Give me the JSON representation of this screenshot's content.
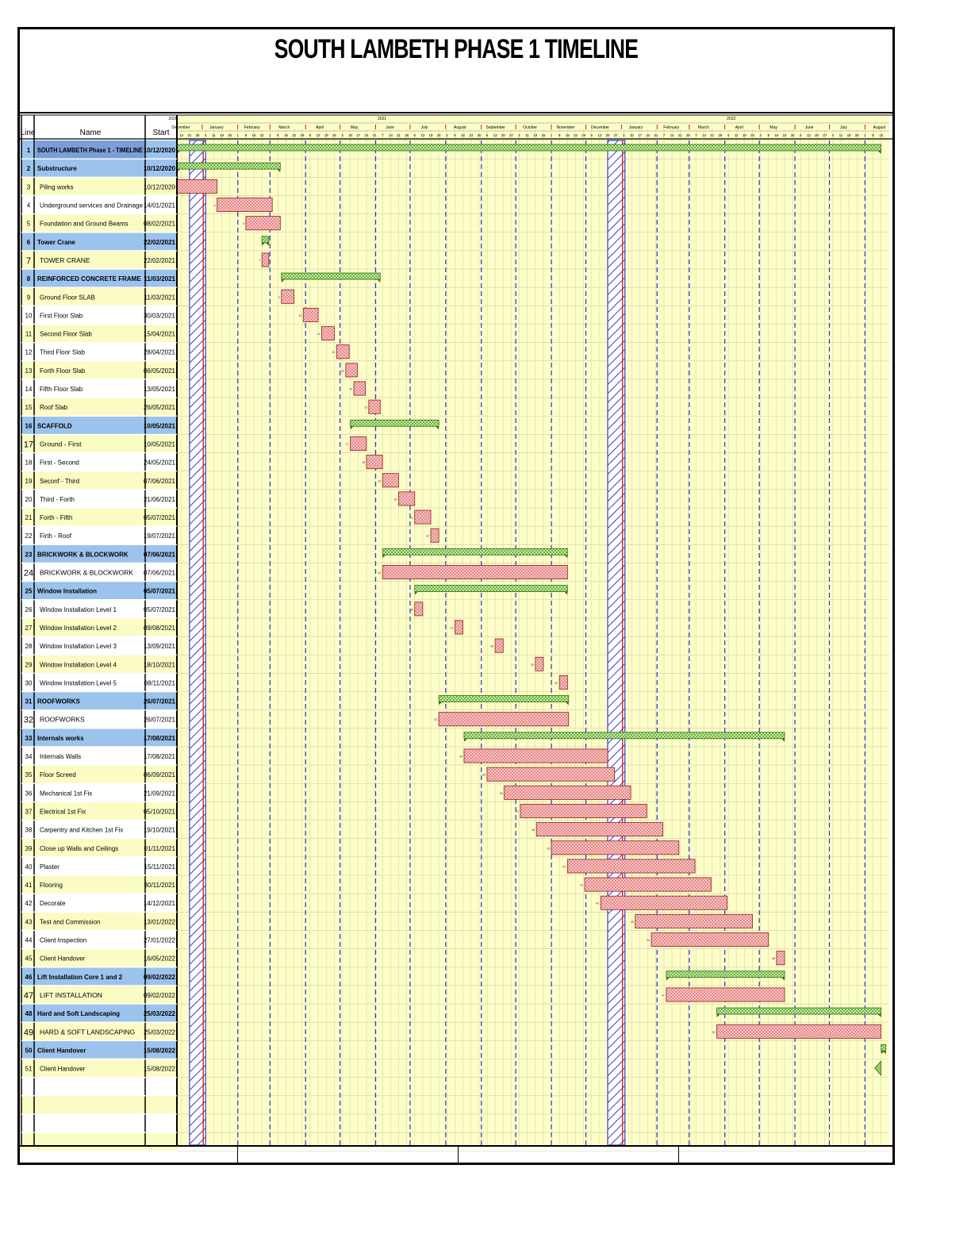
{
  "title": "SOUTH LAMBETH PHASE 1 TIMELINE",
  "colors": {
    "row_yellow": "#fbfbc4",
    "row_white": "#ffffff",
    "summary_blue": "#9cc3ec",
    "chart_bg": "#fdfdc8",
    "task_bar": "#e88a8a",
    "summary_bar": "#7cc04a",
    "week_line": "#6a6ad8",
    "month_line": "#2233cc",
    "holiday_hatch": "#3a3acc"
  },
  "columns": {
    "line": "Line",
    "name": "Name",
    "start": "Start"
  },
  "timeline": {
    "years": [
      {
        "label": "2020",
        "date": "2020-12-01"
      },
      {
        "label": "2021",
        "date": "2021-06-01"
      },
      {
        "label": "2022",
        "date": "2022-04-01"
      }
    ],
    "months": [
      {
        "label": "December",
        "date": "2020-12-01"
      },
      {
        "label": "January",
        "date": "2021-01-01"
      },
      {
        "label": "February",
        "date": "2021-02-01"
      },
      {
        "label": "March",
        "date": "2021-03-01"
      },
      {
        "label": "April",
        "date": "2021-04-01"
      },
      {
        "label": "May",
        "date": "2021-05-01"
      },
      {
        "label": "June",
        "date": "2021-06-01"
      },
      {
        "label": "July",
        "date": "2021-07-01"
      },
      {
        "label": "August",
        "date": "2021-08-01"
      },
      {
        "label": "September",
        "date": "2021-09-01"
      },
      {
        "label": "October",
        "date": "2021-10-01"
      },
      {
        "label": "November",
        "date": "2021-11-01"
      },
      {
        "label": "December",
        "date": "2021-12-01"
      },
      {
        "label": "January",
        "date": "2022-01-01"
      },
      {
        "label": "February",
        "date": "2022-02-01"
      },
      {
        "label": "March",
        "date": "2022-03-01"
      },
      {
        "label": "April",
        "date": "2022-04-01"
      },
      {
        "label": "May",
        "date": "2022-05-01"
      },
      {
        "label": "June",
        "date": "2022-06-01"
      },
      {
        "label": "July",
        "date": "2022-07-01"
      },
      {
        "label": "August",
        "date": "2022-08-01"
      }
    ],
    "holidays": [
      {
        "start": "2020-12-21",
        "end": "2021-01-04"
      },
      {
        "start": "2021-12-20",
        "end": "2022-01-04"
      }
    ],
    "range": [
      "2020-12-10",
      "2022-08-18"
    ]
  },
  "chart_data": {
    "type": "gantt",
    "title": "SOUTH LAMBETH PHASE 1 TIMELINE",
    "tasks": [
      {
        "line": "1",
        "name": "SOUTH LAMBETH Phase 1 - TIMELINE",
        "start": "10/12/2020",
        "from": "2020-12-10",
        "to": "2022-08-15",
        "kind": "project"
      },
      {
        "line": "2",
        "name": "Substructure",
        "start": "10/12/2020",
        "from": "2020-12-10",
        "to": "2021-03-10",
        "kind": "summary"
      },
      {
        "line": "3",
        "name": "Piling works",
        "start": "10/12/2020",
        "from": "2020-12-10",
        "to": "2021-01-14",
        "kind": "task"
      },
      {
        "line": "4",
        "name": "Underground services and Drainage",
        "start": "14/01/2021",
        "from": "2021-01-14",
        "to": "2021-03-03",
        "kind": "task"
      },
      {
        "line": "5",
        "name": "Foundation and Ground Beams",
        "start": "08/02/2021",
        "from": "2021-02-08",
        "to": "2021-03-10",
        "kind": "task"
      },
      {
        "line": "6",
        "name": "Tower Crane",
        "start": "22/02/2021",
        "from": "2021-02-22",
        "to": "2021-02-28",
        "kind": "summary"
      },
      {
        "line": "7",
        "name": "TOWER CRANE",
        "start": "22/02/2021",
        "from": "2021-02-22",
        "to": "2021-02-28",
        "kind": "task"
      },
      {
        "line": "8",
        "name": "REINFORCED CONCRETE FRAME",
        "start": "11/03/2021",
        "from": "2021-03-11",
        "to": "2021-06-05",
        "kind": "summary"
      },
      {
        "line": "9",
        "name": "Ground Floor SLAB",
        "start": "11/03/2021",
        "from": "2021-03-11",
        "to": "2021-03-22",
        "kind": "task"
      },
      {
        "line": "10",
        "name": "First Floor Slab",
        "start": "30/03/2021",
        "from": "2021-03-30",
        "to": "2021-04-12",
        "kind": "task"
      },
      {
        "line": "11",
        "name": "Second Floor Slab",
        "start": "15/04/2021",
        "from": "2021-04-15",
        "to": "2021-04-26",
        "kind": "task"
      },
      {
        "line": "12",
        "name": "Third Floor Slab",
        "start": "28/04/2021",
        "from": "2021-04-28",
        "to": "2021-05-09",
        "kind": "task"
      },
      {
        "line": "13",
        "name": "Forth Floor Slab",
        "start": "06/05/2021",
        "from": "2021-05-06",
        "to": "2021-05-16",
        "kind": "task"
      },
      {
        "line": "14",
        "name": "Fifth Floor Slab",
        "start": "13/05/2021",
        "from": "2021-05-13",
        "to": "2021-05-23",
        "kind": "task"
      },
      {
        "line": "15",
        "name": "Roof Slab",
        "start": "26/05/2021",
        "from": "2021-05-26",
        "to": "2021-06-05",
        "kind": "task"
      },
      {
        "line": "16",
        "name": "SCAFFOLD",
        "start": "10/05/2021",
        "from": "2021-05-10",
        "to": "2021-07-26",
        "kind": "summary"
      },
      {
        "line": "17",
        "name": "Ground - First",
        "start": "10/05/2021",
        "from": "2021-05-10",
        "to": "2021-05-24",
        "kind": "task"
      },
      {
        "line": "18",
        "name": "First - Second",
        "start": "24/05/2021",
        "from": "2021-05-24",
        "to": "2021-06-07",
        "kind": "task"
      },
      {
        "line": "19",
        "name": "Seconf - Third",
        "start": "07/06/2021",
        "from": "2021-06-07",
        "to": "2021-06-21",
        "kind": "task"
      },
      {
        "line": "20",
        "name": "Third - Forth",
        "start": "21/06/2021",
        "from": "2021-06-21",
        "to": "2021-07-05",
        "kind": "task"
      },
      {
        "line": "21",
        "name": "Forth - Fifth",
        "start": "05/07/2021",
        "from": "2021-07-05",
        "to": "2021-07-19",
        "kind": "task"
      },
      {
        "line": "22",
        "name": "Firth - Roof",
        "start": "19/07/2021",
        "from": "2021-07-19",
        "to": "2021-07-26",
        "kind": "task"
      },
      {
        "line": "23",
        "name": "BRICKWORK & BLOCKWORK",
        "start": "07/06/2021",
        "from": "2021-06-07",
        "to": "2021-11-15",
        "kind": "summary"
      },
      {
        "line": "24",
        "name": "BRICKWORK & BLOCKWORK",
        "start": "07/06/2021",
        "from": "2021-06-07",
        "to": "2021-11-15",
        "kind": "task"
      },
      {
        "line": "25",
        "name": "Window Installation",
        "start": "05/07/2021",
        "from": "2021-07-05",
        "to": "2021-11-15",
        "kind": "summary"
      },
      {
        "line": "26",
        "name": "Window Installation Level 1",
        "start": "05/07/2021",
        "from": "2021-07-05",
        "to": "2021-07-12",
        "kind": "task"
      },
      {
        "line": "27",
        "name": "Window Installation Level 2",
        "start": "09/08/2021",
        "from": "2021-08-09",
        "to": "2021-08-16",
        "kind": "task"
      },
      {
        "line": "28",
        "name": "Window Installation Level 3",
        "start": "13/09/2021",
        "from": "2021-09-13",
        "to": "2021-09-20",
        "kind": "task"
      },
      {
        "line": "29",
        "name": "Window Installation Level 4",
        "start": "18/10/2021",
        "from": "2021-10-18",
        "to": "2021-10-25",
        "kind": "task"
      },
      {
        "line": "30",
        "name": "Window Installation Level 5",
        "start": "08/11/2021",
        "from": "2021-11-08",
        "to": "2021-11-15",
        "kind": "task"
      },
      {
        "line": "31",
        "name": "ROOFWORKS",
        "start": "26/07/2021",
        "from": "2021-07-26",
        "to": "2021-11-16",
        "kind": "summary"
      },
      {
        "line": "32",
        "name": "ROOFWORKS",
        "start": "26/07/2021",
        "from": "2021-07-26",
        "to": "2021-11-16",
        "kind": "task"
      },
      {
        "line": "33",
        "name": "Internals works",
        "start": "17/08/2021",
        "from": "2021-08-17",
        "to": "2022-05-23",
        "kind": "summary"
      },
      {
        "line": "34",
        "name": "Internals Walls",
        "start": "17/08/2021",
        "from": "2021-08-17",
        "to": "2021-12-20",
        "kind": "task"
      },
      {
        "line": "35",
        "name": "Floor Screed",
        "start": "06/09/2021",
        "from": "2021-09-06",
        "to": "2021-12-26",
        "kind": "task"
      },
      {
        "line": "36",
        "name": "Mechanical 1st Fix",
        "start": "21/09/2021",
        "from": "2021-09-21",
        "to": "2022-01-09",
        "kind": "task"
      },
      {
        "line": "37",
        "name": "Electrical 1st Fix",
        "start": "05/10/2021",
        "from": "2021-10-05",
        "to": "2022-01-23",
        "kind": "task"
      },
      {
        "line": "38",
        "name": "Carpentry and Kitchen 1st Fix",
        "start": "19/10/2021",
        "from": "2021-10-19",
        "to": "2022-02-06",
        "kind": "task"
      },
      {
        "line": "39",
        "name": "Close up Walls and Ceilings",
        "start": "01/11/2021",
        "from": "2021-11-01",
        "to": "2022-02-20",
        "kind": "task"
      },
      {
        "line": "40",
        "name": "Plaster",
        "start": "15/11/2021",
        "from": "2021-11-15",
        "to": "2022-03-06",
        "kind": "task"
      },
      {
        "line": "41",
        "name": "Flooring",
        "start": "30/11/2021",
        "from": "2021-11-30",
        "to": "2022-03-20",
        "kind": "task"
      },
      {
        "line": "42",
        "name": "Decorate",
        "start": "14/12/2021",
        "from": "2021-12-14",
        "to": "2022-04-03",
        "kind": "task"
      },
      {
        "line": "43",
        "name": "Test and Commission",
        "start": "13/01/2022",
        "from": "2022-01-13",
        "to": "2022-04-25",
        "kind": "task"
      },
      {
        "line": "44",
        "name": "Client Inspection",
        "start": "27/01/2022",
        "from": "2022-01-27",
        "to": "2022-05-09",
        "kind": "task"
      },
      {
        "line": "45",
        "name": "Client Handover",
        "start": "16/05/2022",
        "from": "2022-05-16",
        "to": "2022-05-23",
        "kind": "task"
      },
      {
        "line": "46",
        "name": "Lift Installation Core 1 and 2",
        "start": "09/02/2022",
        "from": "2022-02-09",
        "to": "2022-05-23",
        "kind": "summary"
      },
      {
        "line": "47",
        "name": "LIFT INSTALLATION",
        "start": "09/02/2022",
        "from": "2022-02-09",
        "to": "2022-05-23",
        "kind": "task"
      },
      {
        "line": "48",
        "name": "Hard and Soft Landscaping",
        "start": "25/03/2022",
        "from": "2022-03-25",
        "to": "2022-08-15",
        "kind": "summary"
      },
      {
        "line": "49",
        "name": "HARD & SOFT LANDSCAPING",
        "start": "25/03/2022",
        "from": "2022-03-25",
        "to": "2022-08-15",
        "kind": "task"
      },
      {
        "line": "50",
        "name": "Client Handover",
        "start": "15/08/2022",
        "from": "2022-08-15",
        "to": "2022-08-15",
        "kind": "summary"
      },
      {
        "line": "51",
        "name": "Client Handover",
        "start": "15/08/2022",
        "from": "2022-08-15",
        "to": "2022-08-15",
        "kind": "milestone"
      }
    ],
    "empty_rows": 4
  }
}
